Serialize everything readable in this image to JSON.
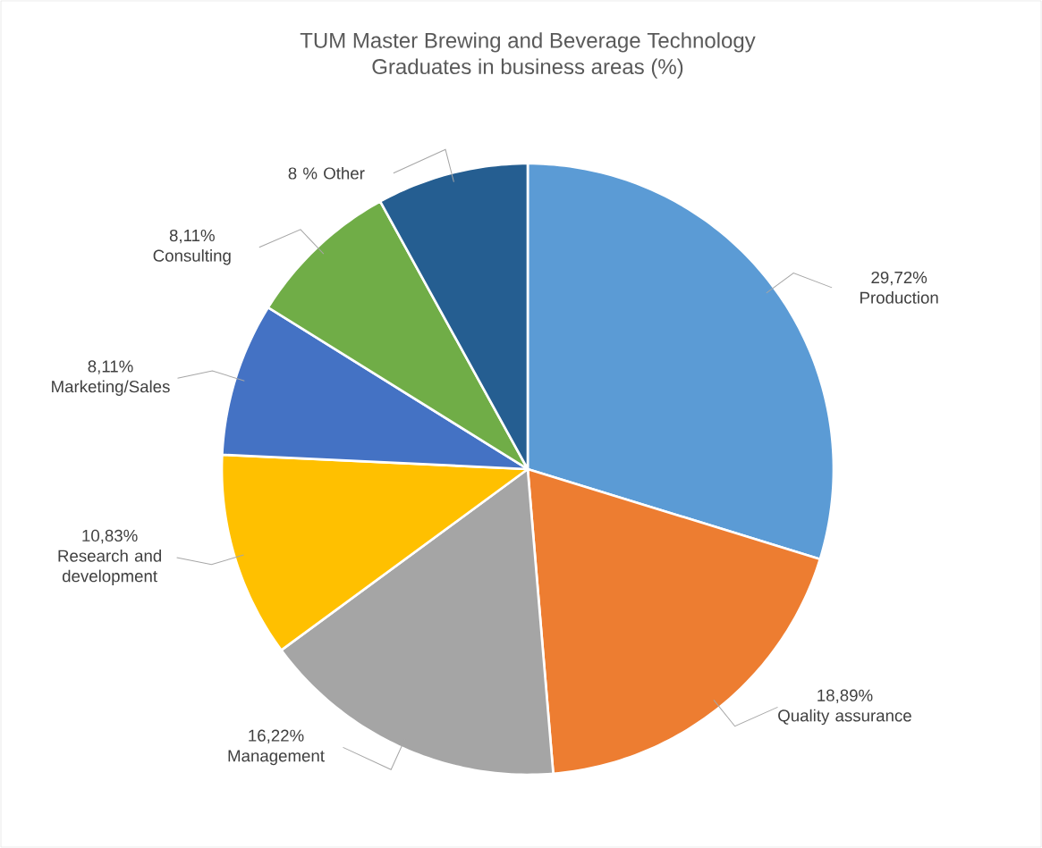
{
  "chart_data": {
    "type": "pie",
    "title": "TUM Master Brewing and Beverage Technology",
    "subtitle": "Graduates in business areas (%)",
    "categories": [
      "Production",
      "Quality assurance",
      "Management",
      "Research and development",
      "Marketing/Sales",
      "Consulting",
      "Other"
    ],
    "values": [
      29.72,
      18.89,
      16.22,
      10.83,
      8.11,
      8.11,
      8
    ],
    "value_labels": [
      "29,72%",
      "18,89%",
      "16,22%",
      "10,83%",
      "8,11%",
      "8,11%",
      "8 %"
    ],
    "colors": [
      "#5b9bd5",
      "#ed7d31",
      "#a5a5a5",
      "#ffc000",
      "#4472c4",
      "#70ad47",
      "#255e91"
    ]
  }
}
